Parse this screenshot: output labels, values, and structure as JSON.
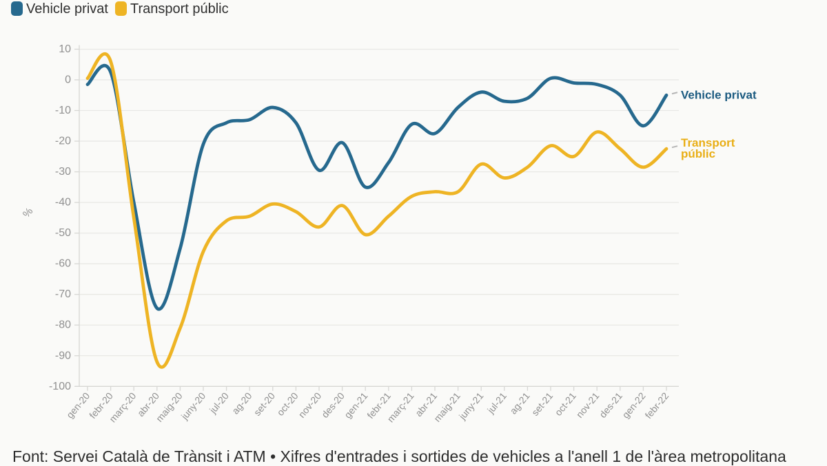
{
  "legend": {
    "items": [
      {
        "label": "Vehicle privat",
        "color": "#26698e"
      },
      {
        "label": "Transport públic",
        "color": "#eeb424"
      }
    ]
  },
  "chart_data": {
    "type": "line",
    "x": [
      "gen-20",
      "febr-20",
      "març-20",
      "abr-20",
      "maig-20",
      "juny-20",
      "jul-20",
      "ag-20",
      "set-20",
      "oct-20",
      "nov-20",
      "des-20",
      "gen-21",
      "febr-21",
      "març-21",
      "abr-21",
      "maig-21",
      "juny-21",
      "jul-21",
      "ag-21",
      "set-21",
      "oct-21",
      "nov-21",
      "des-21",
      "gen-22",
      "febr-22"
    ],
    "series": [
      {
        "name": "Vehicle privat",
        "color": "#26698e",
        "end_label_lines": [
          "Vehicle privat"
        ],
        "end_label_color": "#1b5a80",
        "values": [
          -1.5,
          2.5,
          -40,
          -74.5,
          -55,
          -21,
          -14,
          -13,
          -9,
          -14,
          -29.5,
          -20.5,
          -35,
          -27,
          -14.5,
          -17.5,
          -9,
          -4,
          -7,
          -6,
          0.5,
          -1,
          -1.5,
          -5,
          -15,
          -5
        ]
      },
      {
        "name": "Transport públic",
        "color": "#eeb424",
        "end_label_lines": [
          "Transport",
          "públic"
        ],
        "end_label_color": "#e9ae15",
        "values": [
          0.5,
          6,
          -45,
          -92,
          -81,
          -56,
          -46,
          -44.5,
          -40.5,
          -43,
          -48,
          -41,
          -50.5,
          -44.5,
          -38,
          -36.5,
          -36.5,
          -27.5,
          -32,
          -28.5,
          -21.5,
          -25,
          -17,
          -22.5,
          -28.5,
          -22.5
        ]
      }
    ],
    "ylabel": "%",
    "ylim": [
      -100,
      10
    ],
    "ytick_step": 10,
    "yticks": [
      10,
      0,
      -10,
      -20,
      -30,
      -40,
      -50,
      -60,
      -70,
      -80,
      -90,
      -100
    ],
    "grid": true,
    "legend_position": "top-left"
  },
  "footer": {
    "text": "Font: Servei Català de Trànsit i ATM • Xifres d'entrades i sortides de vehicles a l'anell 1 de l'àrea metropolitana"
  },
  "colors": {
    "background": "#fafaf8",
    "grid": "#e8e8e5",
    "axis": "#d7d7d4",
    "tick_label": "#909090",
    "connector": "#b5b5b5"
  }
}
